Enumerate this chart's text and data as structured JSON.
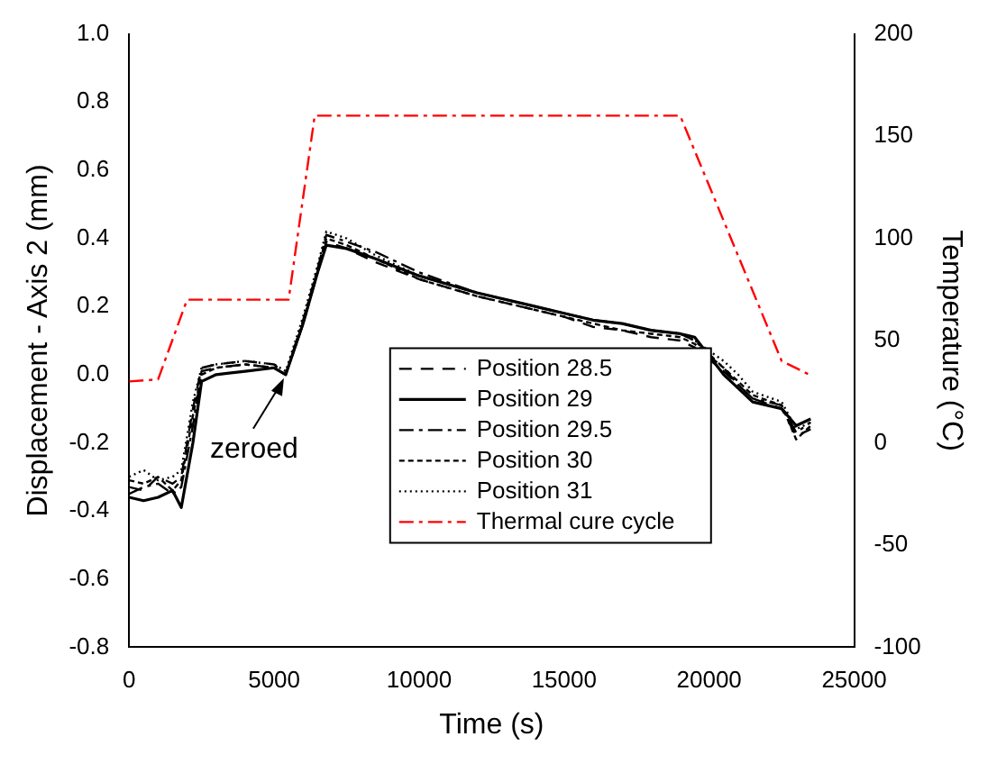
{
  "chart_data": {
    "type": "line",
    "xlabel": "Time (s)",
    "ylabel": "Displacement - Axis 2 (mm)",
    "y2label": "Temperature (°C)",
    "x": [
      0,
      500,
      1000,
      1500,
      1800,
      2200,
      2500,
      3000,
      4000,
      5000,
      5400,
      6000,
      6500,
      6800,
      7500,
      8500,
      10000,
      12000,
      14000,
      15000,
      16000,
      17000,
      18000,
      19000,
      19500,
      20500,
      21000,
      21500,
      22500,
      23000,
      23500
    ],
    "xlim": [
      0,
      25000
    ],
    "xticks": [
      0,
      5000,
      10000,
      15000,
      20000,
      25000
    ],
    "ylim": [
      -0.8,
      1.0
    ],
    "yticks": [
      -0.8,
      -0.6,
      -0.4,
      -0.2,
      {
        "value": 0,
        "label": "0.0"
      },
      0.2,
      0.4,
      0.6,
      0.8,
      {
        "value": 1,
        "label": "1.0"
      }
    ],
    "y2lim": [
      -100,
      200
    ],
    "y2ticks": [
      -100,
      -50,
      0,
      50,
      100,
      150,
      200
    ],
    "legend": "bottom",
    "grid": false,
    "series": [
      {
        "name": "Position 28.5",
        "color": "#000000",
        "line_style": "dashed",
        "values": [
          -0.33,
          -0.34,
          -0.3,
          -0.32,
          -0.3,
          -0.1,
          0.02,
          0.03,
          0.04,
          0.03,
          0.0,
          0.15,
          0.3,
          0.39,
          0.37,
          0.33,
          0.28,
          0.23,
          0.19,
          0.17,
          0.14,
          0.13,
          0.11,
          0.1,
          0.08,
          0.01,
          -0.03,
          -0.07,
          -0.1,
          -0.18,
          -0.16
        ]
      },
      {
        "name": "Position 29",
        "color": "#000000",
        "line_style": "solid",
        "values": [
          -0.36,
          -0.37,
          -0.36,
          -0.34,
          -0.39,
          -0.2,
          -0.02,
          0.0,
          0.01,
          0.02,
          0.0,
          0.15,
          0.3,
          0.38,
          0.37,
          0.34,
          0.29,
          0.24,
          0.2,
          0.18,
          0.16,
          0.15,
          0.13,
          0.12,
          0.11,
          0.0,
          -0.04,
          -0.08,
          -0.1,
          -0.15,
          -0.13
        ]
      },
      {
        "name": "Position 29.5",
        "color": "#000000",
        "line_style": "dashdot",
        "values": [
          -0.35,
          -0.33,
          -0.32,
          -0.35,
          -0.33,
          -0.15,
          0.01,
          0.02,
          0.03,
          0.02,
          0.0,
          0.16,
          0.31,
          0.41,
          0.39,
          0.36,
          0.3,
          0.24,
          0.2,
          0.18,
          0.16,
          0.15,
          0.13,
          0.12,
          0.1,
          0.02,
          -0.03,
          -0.07,
          -0.09,
          -0.17,
          -0.14
        ]
      },
      {
        "name": "Position 30",
        "color": "#000000",
        "line_style": "dashed_short",
        "values": [
          -0.31,
          -0.32,
          -0.3,
          -0.34,
          -0.31,
          -0.12,
          0.0,
          0.02,
          0.03,
          0.02,
          0.0,
          0.15,
          0.31,
          0.4,
          0.38,
          0.34,
          0.28,
          0.23,
          0.19,
          0.17,
          0.15,
          0.13,
          0.12,
          0.11,
          0.09,
          0.02,
          -0.02,
          -0.06,
          -0.09,
          -0.19,
          -0.15
        ]
      },
      {
        "name": "Position 31",
        "color": "#000000",
        "line_style": "dotted",
        "values": [
          -0.3,
          -0.28,
          -0.31,
          -0.3,
          -0.28,
          -0.08,
          0.02,
          0.03,
          0.04,
          0.03,
          0.01,
          0.17,
          0.32,
          0.42,
          0.4,
          0.35,
          0.29,
          0.24,
          0.2,
          0.18,
          0.16,
          0.15,
          0.13,
          0.12,
          0.1,
          0.04,
          0.0,
          -0.05,
          -0.08,
          -0.16,
          -0.14
        ]
      },
      {
        "name": "Thermal cure cycle",
        "color": "#ff0000",
        "line_style": "dashdot",
        "axis": "y2",
        "x": [
          0,
          1000,
          2000,
          5500,
          6400,
          19000,
          22500,
          23500
        ],
        "values": [
          30,
          31,
          70,
          70,
          160,
          160,
          40,
          33
        ]
      }
    ],
    "annotations": [
      {
        "text": "zeroed",
        "x": 5400,
        "y": 0.0
      }
    ]
  }
}
